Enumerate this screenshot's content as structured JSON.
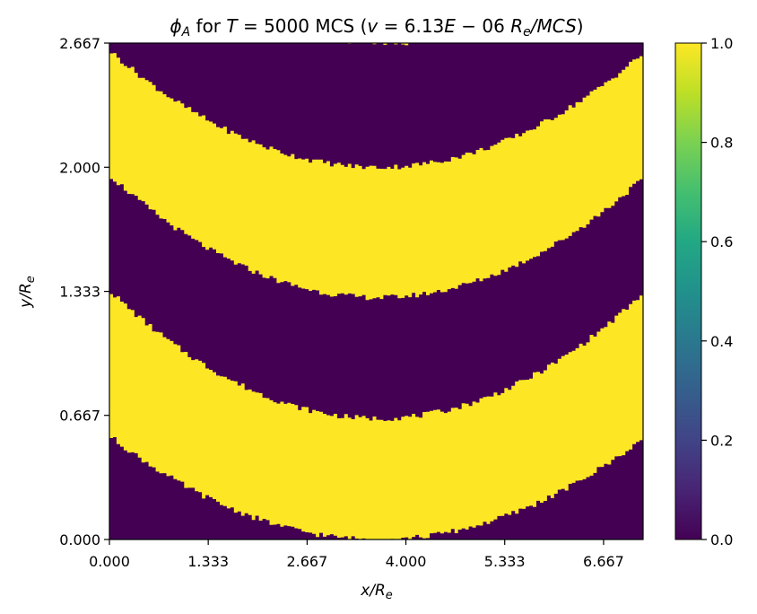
{
  "chart_data": {
    "type": "heatmap",
    "title": "ϕ_A for T = 5000 MCS (v = 6.13E − 06 R_e/MCS)",
    "title_parts": {
      "phi": "ϕ",
      "phi_sub": "A",
      "for": " for ",
      "T_sym": "T",
      "T_eq": " = 5000 MCS (",
      "v_sym": "v",
      "v_eq": " = 6.13",
      "E": "E",
      "minus": " − 06 ",
      "R": "R",
      "R_sub": "e",
      "slash": "/",
      "MCS": "MCS",
      "close": ")"
    },
    "xlabel": {
      "main": "x/R",
      "sub": "e"
    },
    "ylabel": {
      "main": "y/R",
      "sub": "e"
    },
    "xlim": [
      0.0,
      7.2
    ],
    "ylim": [
      0.0,
      2.667
    ],
    "x_ticks": [
      "0.000",
      "1.333",
      "2.667",
      "4.000",
      "5.333",
      "6.667"
    ],
    "y_ticks": [
      "0.000",
      "0.667",
      "1.333",
      "2.000",
      "2.667"
    ],
    "colorbar": {
      "colormap": "viridis",
      "range": [
        0.0,
        1.0
      ],
      "ticks": [
        "0.0",
        "0.2",
        "0.4",
        "0.6",
        "0.8",
        "1.0"
      ]
    },
    "field_description": "binary field with three U-shaped bands of value 1.0 on a 0.0 background, rough interfaces",
    "bands": [
      {
        "value": 1.0,
        "lower_center_y": 2.667,
        "lower_edge_y": 2.56
      },
      {
        "value": 1.0,
        "center_upper_y": 2.0,
        "center_lower_y": 1.3,
        "edge_upper_y": 2.62,
        "edge_lower_y": 1.95
      },
      {
        "value": 1.0,
        "center_upper_y": 0.65,
        "center_lower_y": 0.0,
        "edge_upper_y": 1.33,
        "edge_lower_y": 0.55
      }
    ],
    "colors": {
      "low": "#440154",
      "high": "#fde725"
    }
  }
}
